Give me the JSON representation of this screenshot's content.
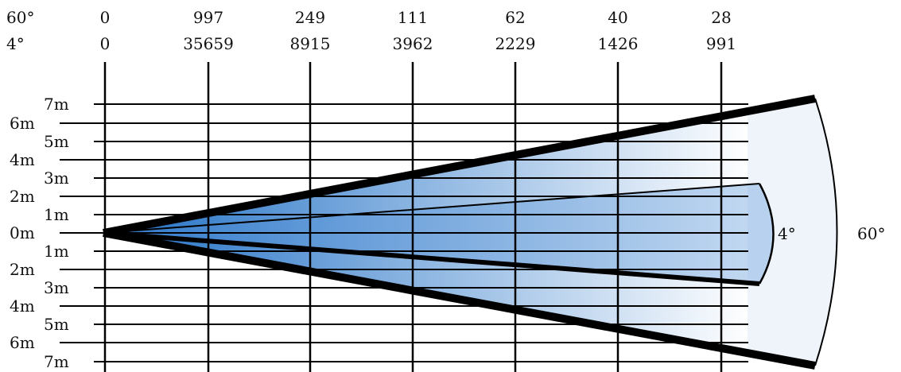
{
  "header_rows": [
    {
      "angle": "60°",
      "values": [
        "0",
        "997",
        "249",
        "111",
        "62",
        "40",
        "28"
      ]
    },
    {
      "angle": "4°",
      "values": [
        "0",
        "35659",
        "8915",
        "3962",
        "2229",
        "1426",
        "991"
      ]
    }
  ],
  "distance_labels": [
    "7m",
    "6m",
    "5m",
    "4m",
    "3m",
    "2m",
    "1m",
    "0m",
    "1m",
    "2m",
    "3m",
    "4m",
    "5m",
    "6m",
    "7m"
  ],
  "beams": [
    {
      "label": "4°"
    },
    {
      "label": "60°"
    }
  ],
  "colors": {
    "beam_dark": "#1f6fc5",
    "beam_light": "#ffffff",
    "beam_end": "#eef4fa",
    "lines": "#000000"
  }
}
